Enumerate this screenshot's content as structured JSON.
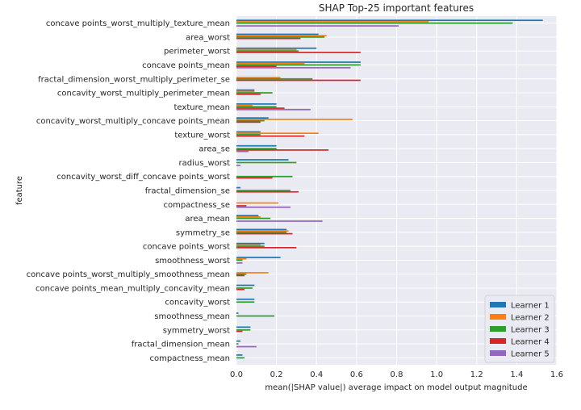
{
  "chart_data": {
    "type": "bar",
    "orientation": "horizontal",
    "title": "SHAP Top-25 important features",
    "xlabel": "mean(|SHAP value|) average impact on model output magnitude",
    "ylabel": "feature",
    "xlim": [
      0,
      1.6
    ],
    "xticks": [
      "0.0",
      "0.2",
      "0.4",
      "0.6",
      "0.8",
      "1.0",
      "1.2",
      "1.4",
      "1.6"
    ],
    "grid": true,
    "legend_position": "lower-right",
    "categories": [
      "concave points_worst_multiply_texture_mean",
      "area_worst",
      "perimeter_worst",
      "concave points_mean",
      "fractal_dimension_worst_multiply_perimeter_se",
      "concavity_worst_multiply_perimeter_mean",
      "texture_mean",
      "concavity_worst_multiply_concave points_mean",
      "texture_worst",
      "area_se",
      "radius_worst",
      "concavity_worst_diff_concave points_worst",
      "fractal_dimension_se",
      "compactness_se",
      "area_mean",
      "symmetry_se",
      "concave points_worst",
      "smoothness_worst",
      "concave points_worst_multiply_smoothness_mean",
      "concave points_mean_multiply_concavity_mean",
      "concavity_worst",
      "smoothness_mean",
      "symmetry_worst",
      "fractal_dimension_mean",
      "compactness_mean"
    ],
    "series": [
      {
        "name": "Learner 1",
        "color": "#1f77b4",
        "values": [
          1.53,
          0.41,
          0.4,
          0.62,
          0.0,
          0.09,
          0.2,
          0.16,
          0.12,
          0.2,
          0.26,
          0.0,
          0.02,
          0.0,
          0.11,
          0.25,
          0.14,
          0.22,
          0.0,
          0.09,
          0.09,
          0.01,
          0.07,
          0.02,
          0.03
        ]
      },
      {
        "name": "Learner 2",
        "color": "#ff7f0e",
        "values": [
          0.96,
          0.45,
          0.3,
          0.34,
          0.22,
          0.09,
          0.08,
          0.58,
          0.41,
          0.0,
          0.0,
          0.0,
          0.0,
          0.21,
          0.12,
          0.26,
          0.12,
          0.05,
          0.16,
          0.0,
          0.0,
          0.0,
          0.0,
          0.0,
          0.0
        ]
      },
      {
        "name": "Learner 3",
        "color": "#2ca02c",
        "values": [
          1.38,
          0.44,
          0.31,
          0.62,
          0.38,
          0.18,
          0.2,
          0.14,
          0.12,
          0.2,
          0.3,
          0.28,
          0.27,
          0.0,
          0.17,
          0.25,
          0.14,
          0.03,
          0.05,
          0.08,
          0.09,
          0.19,
          0.07,
          0.01,
          0.04
        ]
      },
      {
        "name": "Learner 4",
        "color": "#d62728",
        "values": [
          0.0,
          0.32,
          0.62,
          0.2,
          0.62,
          0.12,
          0.24,
          0.12,
          0.34,
          0.46,
          0.0,
          0.18,
          0.31,
          0.05,
          0.0,
          0.28,
          0.3,
          0.0,
          0.04,
          0.04,
          0.0,
          0.0,
          0.03,
          0.0,
          0.0
        ]
      },
      {
        "name": "Learner 5",
        "color": "#9467bd",
        "values": [
          0.81,
          0.0,
          0.0,
          0.57,
          0.0,
          0.0,
          0.37,
          0.0,
          0.0,
          0.06,
          0.02,
          0.0,
          0.0,
          0.27,
          0.43,
          0.0,
          0.0,
          0.03,
          0.0,
          0.0,
          0.0,
          0.0,
          0.0,
          0.1,
          0.0
        ]
      }
    ]
  }
}
